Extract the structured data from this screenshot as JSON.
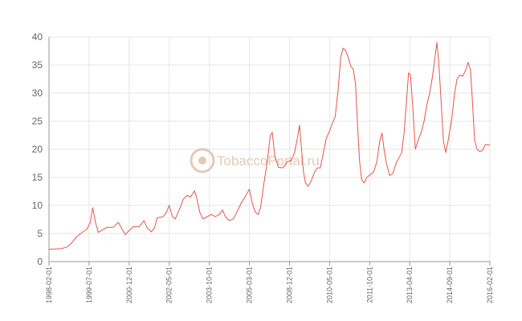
{
  "watermark": {
    "text": "TobaccoPortal.ru",
    "color": "#e6c9b3"
  },
  "colors": {
    "line": "#e8534a",
    "grid": "#e6e6e6",
    "axis": "#999999",
    "text": "#666666"
  },
  "chart_data": {
    "type": "line",
    "title": "",
    "xlabel": "",
    "ylabel": "",
    "ylim": [
      0,
      40
    ],
    "yticks": [
      0,
      5,
      10,
      15,
      20,
      25,
      30,
      35,
      40
    ],
    "grid": true,
    "xticks": [
      "1998-02-01",
      "1999-07-01",
      "2000-12-01",
      "2002-05-01",
      "2003-10-01",
      "2005-03-01",
      "2008-12-01",
      "2010-05-01",
      "2011-10-01",
      "2013-04-01",
      "2014-09-01",
      "2016-02-01"
    ],
    "series": [
      {
        "name": "",
        "points": [
          [
            0.0,
            2.2
          ],
          [
            3.0,
            2.3
          ],
          [
            4.5,
            2.6
          ],
          [
            5.5,
            3.2
          ],
          [
            7.0,
            4.5
          ],
          [
            8.5,
            5.3
          ],
          [
            9.5,
            5.8
          ],
          [
            10.3,
            7.0
          ],
          [
            10.9,
            9.6
          ],
          [
            11.6,
            7.0
          ],
          [
            12.3,
            5.2
          ],
          [
            13.2,
            5.6
          ],
          [
            14.5,
            6.1
          ],
          [
            16.0,
            6.1
          ],
          [
            17.3,
            7.0
          ],
          [
            18.0,
            6.1
          ],
          [
            19.0,
            4.8
          ],
          [
            19.8,
            5.4
          ],
          [
            21.0,
            6.2
          ],
          [
            22.5,
            6.2
          ],
          [
            23.7,
            7.3
          ],
          [
            24.5,
            6.0
          ],
          [
            25.5,
            5.3
          ],
          [
            26.3,
            6.0
          ],
          [
            27.0,
            7.8
          ],
          [
            28.5,
            8.0
          ],
          [
            29.3,
            8.8
          ],
          [
            30.0,
            10.0
          ],
          [
            30.8,
            8.0
          ],
          [
            31.5,
            7.6
          ],
          [
            32.5,
            9.2
          ],
          [
            33.5,
            11.1
          ],
          [
            34.5,
            11.8
          ],
          [
            35.3,
            11.5
          ],
          [
            36.3,
            12.6
          ],
          [
            36.8,
            11.5
          ],
          [
            37.6,
            8.8
          ],
          [
            38.4,
            7.6
          ],
          [
            39.5,
            8.0
          ],
          [
            40.5,
            8.4
          ],
          [
            41.5,
            8.0
          ],
          [
            42.5,
            8.4
          ],
          [
            43.3,
            9.2
          ],
          [
            44.0,
            8.0
          ],
          [
            45.0,
            7.3
          ],
          [
            46.0,
            7.6
          ],
          [
            47.0,
            9.0
          ],
          [
            48.0,
            10.5
          ],
          [
            49.0,
            11.6
          ],
          [
            50.0,
            12.9
          ],
          [
            50.8,
            10.2
          ],
          [
            51.5,
            8.8
          ],
          [
            52.2,
            8.4
          ],
          [
            52.8,
            9.6
          ],
          [
            53.6,
            13.8
          ],
          [
            54.5,
            18.0
          ],
          [
            55.2,
            22.4
          ],
          [
            55.7,
            23.0
          ],
          [
            56.3,
            19.0
          ],
          [
            57.2,
            16.8
          ],
          [
            58.4,
            16.7
          ],
          [
            59.5,
            17.8
          ],
          [
            60.5,
            18.0
          ],
          [
            61.3,
            19.5
          ],
          [
            62.0,
            22.0
          ],
          [
            62.5,
            24.3
          ],
          [
            62.9,
            21.0
          ],
          [
            63.5,
            16.0
          ],
          [
            64.0,
            14.0
          ],
          [
            64.7,
            13.4
          ],
          [
            65.5,
            14.5
          ],
          [
            66.3,
            16.0
          ],
          [
            67.0,
            16.7
          ],
          [
            67.7,
            16.7
          ],
          [
            68.5,
            19.5
          ],
          [
            69.2,
            22.0
          ],
          [
            70.0,
            23.3
          ],
          [
            70.7,
            24.6
          ],
          [
            71.4,
            25.8
          ],
          [
            72.2,
            31.0
          ],
          [
            72.8,
            36.4
          ],
          [
            73.4,
            38.0
          ],
          [
            74.0,
            37.6
          ],
          [
            74.7,
            36.3
          ],
          [
            75.3,
            34.8
          ],
          [
            75.9,
            34.3
          ],
          [
            76.5,
            31.5
          ],
          [
            77.0,
            24.0
          ],
          [
            77.5,
            17.8
          ],
          [
            78.0,
            14.6
          ],
          [
            78.6,
            14.0
          ],
          [
            79.3,
            15.0
          ],
          [
            80.2,
            15.5
          ],
          [
            81.0,
            16.0
          ],
          [
            81.8,
            17.8
          ],
          [
            82.5,
            21.4
          ],
          [
            83.1,
            22.9
          ],
          [
            83.6,
            20.0
          ],
          [
            84.2,
            17.5
          ],
          [
            85.0,
            15.3
          ],
          [
            85.8,
            15.7
          ],
          [
            86.6,
            17.5
          ],
          [
            87.4,
            18.6
          ],
          [
            88.0,
            19.4
          ],
          [
            88.6,
            23.0
          ],
          [
            89.2,
            28.5
          ],
          [
            89.7,
            33.6
          ],
          [
            90.2,
            33.2
          ],
          [
            90.8,
            27.0
          ],
          [
            91.4,
            20.0
          ],
          [
            92.0,
            21.4
          ],
          [
            92.8,
            22.9
          ],
          [
            93.6,
            25.0
          ],
          [
            94.3,
            28.0
          ],
          [
            95.0,
            30.0
          ],
          [
            95.7,
            33.0
          ],
          [
            96.3,
            36.3
          ],
          [
            96.8,
            39.0
          ],
          [
            97.2,
            36.0
          ],
          [
            97.8,
            29.0
          ],
          [
            98.4,
            21.5
          ],
          [
            99.0,
            19.4
          ],
          [
            99.7,
            22.0
          ],
          [
            100.5,
            25.5
          ],
          [
            101.2,
            30.0
          ],
          [
            101.8,
            32.5
          ],
          [
            102.5,
            33.2
          ],
          [
            103.2,
            33.0
          ],
          [
            103.9,
            34.0
          ],
          [
            104.6,
            35.5
          ],
          [
            105.2,
            34.0
          ],
          [
            105.7,
            28.0
          ],
          [
            106.2,
            21.6
          ],
          [
            106.8,
            20.0
          ],
          [
            107.5,
            19.6
          ],
          [
            108.2,
            19.8
          ],
          [
            108.8,
            20.8
          ],
          [
            109.5,
            20.8
          ],
          [
            110.0,
            20.7
          ]
        ]
      }
    ]
  }
}
